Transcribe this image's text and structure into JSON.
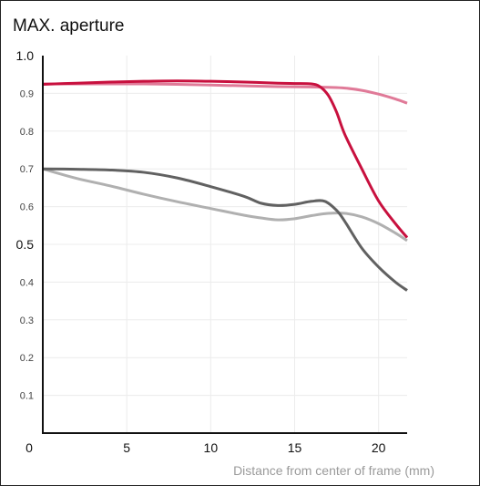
{
  "chart_data": {
    "type": "line",
    "title": "MAX. aperture",
    "xlabel": "Distance from center of frame (mm)",
    "ylabel": "",
    "xlim": [
      0,
      21.7
    ],
    "ylim": [
      0,
      1.0
    ],
    "grid": true,
    "x_ticks": [
      {
        "value": 0,
        "label": "0"
      },
      {
        "value": 5,
        "label": "5"
      },
      {
        "value": 10,
        "label": "10"
      },
      {
        "value": 15,
        "label": "15"
      },
      {
        "value": 20,
        "label": "20"
      }
    ],
    "y_ticks": [
      {
        "value": 0.1,
        "label": "0.1",
        "major": false
      },
      {
        "value": 0.2,
        "label": "0.2",
        "major": false
      },
      {
        "value": 0.3,
        "label": "0.3",
        "major": false
      },
      {
        "value": 0.4,
        "label": "0.4",
        "major": false
      },
      {
        "value": 0.5,
        "label": "0.5",
        "major": true
      },
      {
        "value": 0.6,
        "label": "0.6",
        "major": false
      },
      {
        "value": 0.7,
        "label": "0.7",
        "major": false
      },
      {
        "value": 0.8,
        "label": "0.8",
        "major": false
      },
      {
        "value": 0.9,
        "label": "0.9",
        "major": false
      },
      {
        "value": 1.0,
        "label": "1.0",
        "major": true
      }
    ],
    "series": [
      {
        "color": "#e07a98",
        "x": [
          0,
          2,
          4,
          6,
          8,
          10,
          12,
          14,
          16,
          17,
          18,
          19,
          20,
          21,
          21.7
        ],
        "y": [
          0.925,
          0.925,
          0.925,
          0.925,
          0.924,
          0.922,
          0.92,
          0.918,
          0.917,
          0.916,
          0.914,
          0.908,
          0.898,
          0.885,
          0.874
        ]
      },
      {
        "color": "#c8103e",
        "x": [
          0,
          2,
          4,
          6,
          8,
          10,
          12,
          14,
          15,
          16,
          16.5,
          17,
          17.5,
          18,
          19,
          20,
          21,
          21.7
        ],
        "y": [
          0.924,
          0.927,
          0.93,
          0.932,
          0.933,
          0.932,
          0.93,
          0.927,
          0.926,
          0.925,
          0.918,
          0.895,
          0.85,
          0.79,
          0.7,
          0.615,
          0.555,
          0.518
        ]
      },
      {
        "color": "#b0b0b0",
        "x": [
          0,
          2,
          4,
          6,
          8,
          10,
          12,
          13,
          14,
          15,
          16,
          17,
          18,
          19,
          20,
          21,
          21.7
        ],
        "y": [
          0.7,
          0.675,
          0.655,
          0.633,
          0.613,
          0.595,
          0.577,
          0.57,
          0.565,
          0.568,
          0.576,
          0.582,
          0.582,
          0.573,
          0.555,
          0.53,
          0.51
        ]
      },
      {
        "color": "#616161",
        "x": [
          0,
          2,
          4,
          6,
          8,
          10,
          12,
          13,
          14,
          15,
          16,
          16.8,
          17.5,
          18,
          19,
          20,
          21,
          21.7
        ],
        "y": [
          0.7,
          0.699,
          0.697,
          0.691,
          0.676,
          0.653,
          0.627,
          0.609,
          0.603,
          0.606,
          0.614,
          0.614,
          0.59,
          0.56,
          0.49,
          0.44,
          0.4,
          0.378
        ]
      }
    ]
  }
}
